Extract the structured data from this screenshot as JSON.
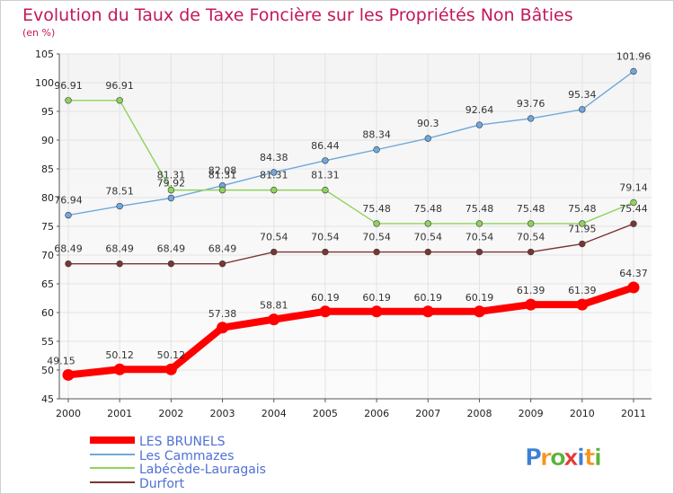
{
  "chart_data": {
    "type": "line",
    "title": "Evolution du Taux de Taxe Foncière sur les Propriétés Non Bâties",
    "subtitle": "(en %)",
    "xlabel": "",
    "ylabel": "",
    "ylim": [
      45,
      105
    ],
    "yticks": [
      45,
      50,
      55,
      60,
      65,
      70,
      75,
      80,
      85,
      90,
      95,
      100,
      105
    ],
    "categories": [
      "2000",
      "2001",
      "2002",
      "2003",
      "2004",
      "2005",
      "2006",
      "2007",
      "2008",
      "2009",
      "2010",
      "2011"
    ],
    "grid": true,
    "legend_position": "bottom-left",
    "series": [
      {
        "name": "LES BRUNELS",
        "color": "#ff0000",
        "values": [
          49.15,
          50.12,
          50.12,
          57.38,
          58.81,
          60.19,
          60.19,
          60.19,
          60.19,
          61.39,
          61.39,
          64.37
        ],
        "labels": [
          "49.15",
          "50.12",
          "50.12",
          "57.38",
          "58.81",
          "60.19",
          "60.19",
          "60.19",
          "60.19",
          "61.39",
          "61.39",
          "64.37"
        ]
      },
      {
        "name": "Les Cammazes",
        "color": "#6fa8dc",
        "values": [
          76.94,
          78.51,
          79.92,
          82.08,
          84.38,
          86.44,
          88.34,
          90.3,
          92.64,
          93.76,
          95.34,
          101.96
        ],
        "labels": [
          "76.94",
          "78.51",
          "79.92",
          "82.08",
          "84.38",
          "86.44",
          "88.34",
          "90.3",
          "92.64",
          "93.76",
          "95.34",
          "101.96"
        ]
      },
      {
        "name": "Labécède-Lauragais",
        "color": "#8fd35b",
        "values": [
          96.91,
          96.91,
          81.31,
          81.31,
          81.31,
          81.31,
          75.48,
          75.48,
          75.48,
          75.48,
          75.48,
          79.14
        ],
        "labels": [
          "96.91",
          "96.91",
          "81.31",
          "81.31",
          "81.31",
          "81.31",
          "75.48",
          "75.48",
          "75.48",
          "75.48",
          "75.48",
          "79.14"
        ]
      },
      {
        "name": "Durfort",
        "color": "#7a3535",
        "values": [
          68.49,
          68.49,
          68.49,
          68.49,
          70.54,
          70.54,
          70.54,
          70.54,
          70.54,
          70.54,
          71.95,
          75.44
        ],
        "labels": [
          "68.49",
          "68.49",
          "68.49",
          "68.49",
          "70.54",
          "70.54",
          "70.54",
          "70.54",
          "70.54",
          "70.54",
          "71.95",
          "75.44"
        ]
      }
    ]
  },
  "brand": {
    "logo_letters": [
      "P",
      "r",
      "o",
      "x",
      "i",
      "t",
      "i"
    ],
    "logo_colors": [
      "#3d7fd6",
      "#f7941d",
      "#5bb33a",
      "#e53935",
      "#3d7fd6",
      "#f7941d",
      "#5bb33a"
    ]
  },
  "colors": {
    "title": "#c2185b",
    "axis_text": "#222222",
    "grid": "#e3e3e3",
    "axis": "#555555"
  }
}
